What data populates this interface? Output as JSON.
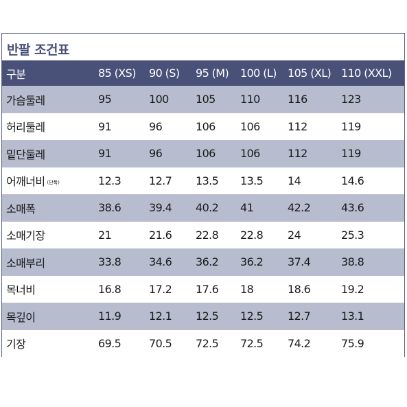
{
  "title": "반팔 조건표",
  "table": {
    "headers": [
      "구분",
      "85 (XS)",
      "90 (S)",
      "95 (M)",
      "100 (L)",
      "105 (XL)",
      "110 (XXL)"
    ],
    "rows": [
      {
        "label": "가슴둘레",
        "note": "",
        "values": [
          "95",
          "100",
          "105",
          "110",
          "116",
          "123"
        ]
      },
      {
        "label": "허리둘레",
        "note": "",
        "values": [
          "91",
          "96",
          "106",
          "106",
          "112",
          "119"
        ]
      },
      {
        "label": "밑단둘레",
        "note": "",
        "values": [
          "91",
          "96",
          "106",
          "106",
          "112",
          "119"
        ]
      },
      {
        "label": "어깨너비",
        "note": "(단폭)",
        "values": [
          "12.3",
          "12.7",
          "13.5",
          "13.5",
          "14",
          "14.6"
        ]
      },
      {
        "label": "소매폭",
        "note": "",
        "values": [
          "38.6",
          "39.4",
          "40.2",
          "41",
          "42.2",
          "43.6"
        ]
      },
      {
        "label": "소매기장",
        "note": "",
        "values": [
          "21",
          "21.6",
          "22.8",
          "22.8",
          "24",
          "25.3"
        ]
      },
      {
        "label": "소매부리",
        "note": "",
        "values": [
          "33.8",
          "34.6",
          "36.2",
          "36.2",
          "37.4",
          "38.8"
        ]
      },
      {
        "label": "목너비",
        "note": "",
        "values": [
          "16.8",
          "17.2",
          "17.6",
          "18",
          "18.6",
          "19.2"
        ]
      },
      {
        "label": "목깊이",
        "note": "",
        "values": [
          "11.9",
          "12.1",
          "12.5",
          "12.5",
          "12.7",
          "13.1"
        ]
      },
      {
        "label": "기장",
        "note": "",
        "values": [
          "69.5",
          "70.5",
          "72.5",
          "72.5",
          "74.2",
          "75.9"
        ]
      }
    ]
  },
  "colors": {
    "header_bg": "#4a5179",
    "shaded_row": "#b7bcce",
    "border": "#5a6287",
    "title_text": "#4a5179"
  }
}
